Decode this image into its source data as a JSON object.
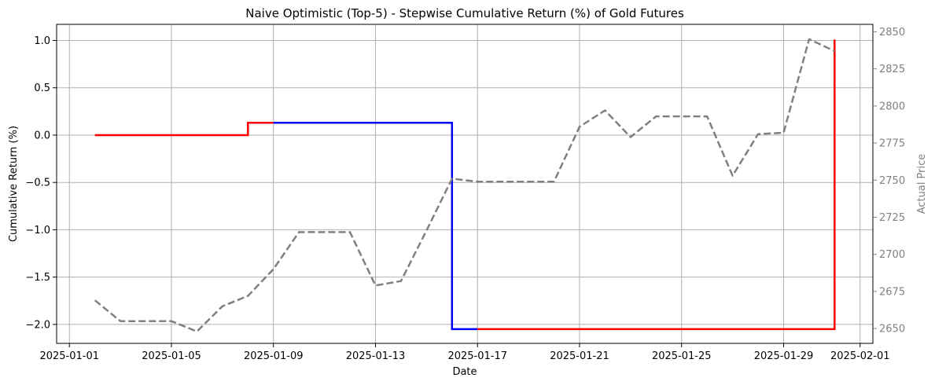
{
  "chart_data": {
    "type": "line",
    "title": "Naive Optimistic (Top-5) - Stepwise Cumulative Return (%) of Gold Futures",
    "xlabel": "Date",
    "ylabel": "Cumulative Return (%)",
    "y2label": "Actual Price",
    "grid": true,
    "x_ticks": [
      "2025-01-01",
      "2025-01-05",
      "2025-01-09",
      "2025-01-13",
      "2025-01-17",
      "2025-01-21",
      "2025-01-25",
      "2025-01-29",
      "2025-02-01"
    ],
    "y_ticks": [
      1.0,
      0.5,
      0.0,
      -0.5,
      -1.0,
      -1.5,
      -2.0
    ],
    "y_tick_labels": [
      "1.0",
      "0.5",
      "0.0",
      "−0.5",
      "−1.0",
      "−1.5",
      "−2.0"
    ],
    "y2_ticks": [
      2850,
      2825,
      2800,
      2775,
      2750,
      2725,
      2700,
      2675,
      2650
    ],
    "y2_tick_labels": [
      "2850",
      "2825",
      "2800",
      "2775",
      "2750",
      "2725",
      "2700",
      "2675",
      "2650"
    ],
    "xlim": [
      "2025-01-01",
      "2025-02-01"
    ],
    "ylim": [
      -2.2,
      1.17
    ],
    "y2lim": [
      2640,
      2855
    ],
    "colors": {
      "red": "#ff0000",
      "blue": "#0000ff",
      "price": "#808080",
      "grid": "#b0b0b0"
    },
    "series": [
      {
        "axis": "left",
        "style": "step",
        "segments": [
          {
            "color": "red",
            "points": [
              [
                "2025-01-02",
                0.0
              ],
              [
                "2025-01-08",
                0.0
              ],
              [
                "2025-01-08",
                0.13
              ],
              [
                "2025-01-09",
                0.13
              ]
            ]
          },
          {
            "color": "blue",
            "points": [
              [
                "2025-01-09",
                0.13
              ],
              [
                "2025-01-16",
                0.13
              ],
              [
                "2025-01-16",
                -2.05
              ],
              [
                "2025-01-17",
                -2.05
              ]
            ]
          },
          {
            "color": "red",
            "points": [
              [
                "2025-01-17",
                -2.05
              ],
              [
                "2025-01-31",
                -2.05
              ],
              [
                "2025-01-31",
                1.01
              ]
            ]
          }
        ]
      },
      {
        "axis": "right",
        "style": "dashed",
        "color": "price",
        "points": [
          [
            "2025-01-02",
            2669
          ],
          [
            "2025-01-03",
            2655
          ],
          [
            "2025-01-04",
            2655
          ],
          [
            "2025-01-05",
            2655
          ],
          [
            "2025-01-06",
            2648
          ],
          [
            "2025-01-07",
            2665
          ],
          [
            "2025-01-08",
            2672
          ],
          [
            "2025-01-09",
            2690
          ],
          [
            "2025-01-10",
            2715
          ],
          [
            "2025-01-11",
            2715
          ],
          [
            "2025-01-12",
            2715
          ],
          [
            "2025-01-13",
            2679
          ],
          [
            "2025-01-14",
            2682
          ],
          [
            "2025-01-15",
            2716
          ],
          [
            "2025-01-16",
            2751
          ],
          [
            "2025-01-17",
            2749
          ],
          [
            "2025-01-18",
            2749
          ],
          [
            "2025-01-19",
            2749
          ],
          [
            "2025-01-20",
            2749
          ],
          [
            "2025-01-21",
            2786
          ],
          [
            "2025-01-22",
            2797
          ],
          [
            "2025-01-23",
            2779
          ],
          [
            "2025-01-24",
            2793
          ],
          [
            "2025-01-25",
            2793
          ],
          [
            "2025-01-26",
            2793
          ],
          [
            "2025-01-27",
            2753
          ],
          [
            "2025-01-28",
            2781
          ],
          [
            "2025-01-29",
            2782
          ],
          [
            "2025-01-30",
            2845
          ],
          [
            "2025-01-31",
            2837
          ]
        ]
      }
    ]
  }
}
